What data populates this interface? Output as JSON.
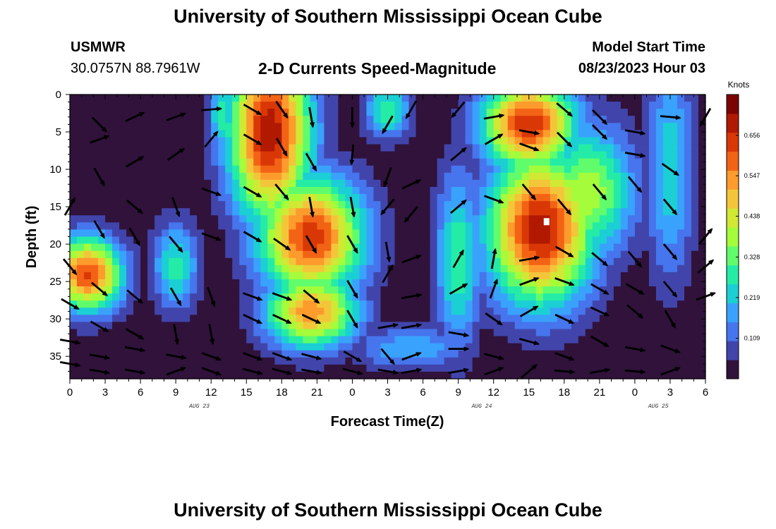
{
  "header": {
    "title": "University of Southern Mississippi Ocean Cube",
    "station_name": "USMWR",
    "station_coords": "30.0757N  88.7961W",
    "subtitle": "2-D Currents Speed-Magnitude",
    "model_start_label": "Model Start Time",
    "model_start_value": "08/23/2023 Hour 03"
  },
  "footer": {
    "title": "University of Southern Mississippi Ocean Cube"
  },
  "chart_data": {
    "type": "heatmap",
    "xlabel": "Forecast Time(Z)",
    "ylabel": "Depth (ft)",
    "x_hours": [
      0,
      54
    ],
    "ylim": [
      0,
      38
    ],
    "x_tick_labels": [
      "0",
      "3",
      "6",
      "9",
      "12",
      "15",
      "18",
      "21",
      "0",
      "3",
      "6",
      "9",
      "12",
      "15",
      "18",
      "21",
      "0",
      "3",
      "6"
    ],
    "y_tick_labels": [
      "0",
      "5",
      "10",
      "15",
      "20",
      "25",
      "30",
      "35"
    ],
    "date_labels": [
      {
        "text": "AUG 23",
        "hour": 11
      },
      {
        "text": "AUG 24",
        "hour": 35
      },
      {
        "text": "AUG 25",
        "hour": 50
      }
    ],
    "colorbar": {
      "unit": "Knots",
      "ticks": [
        0.109,
        0.219,
        0.328,
        0.438,
        0.547,
        0.656
      ],
      "range": [
        0,
        0.766
      ],
      "colors": [
        "#30123b",
        "#4145ab",
        "#4675ed",
        "#39a2fc",
        "#1bcfd4",
        "#24eca6",
        "#61fc6c",
        "#a4fc3b",
        "#d1e834",
        "#f3c63a",
        "#fe9b2d",
        "#f36315",
        "#d93806",
        "#b11901",
        "#7a0402"
      ]
    },
    "speed_peaks": [
      {
        "t": 17,
        "d": 5,
        "s": 0.7,
        "wt": 3.5,
        "wd": 12
      },
      {
        "t": 20.5,
        "d": 19,
        "s": 0.64,
        "wt": 4.5,
        "wd": 8
      },
      {
        "t": 1.5,
        "d": 24,
        "s": 0.62,
        "wt": 3,
        "wd": 5
      },
      {
        "t": 20.5,
        "d": 29,
        "s": 0.55,
        "wt": 4,
        "wd": 5
      },
      {
        "t": 22,
        "d": 19,
        "s": 0.5,
        "wt": 3,
        "wd": 5
      },
      {
        "t": 40,
        "d": 18,
        "s": 0.7,
        "wt": 4.5,
        "wd": 10
      },
      {
        "t": 39,
        "d": 4,
        "s": 0.66,
        "wt": 4,
        "wd": 6
      },
      {
        "t": 44,
        "d": 13,
        "s": 0.4,
        "wt": 4,
        "wd": 9
      },
      {
        "t": 9,
        "d": 23,
        "s": 0.28,
        "wt": 2,
        "wd": 6
      },
      {
        "t": 13,
        "d": 3,
        "s": 0.3,
        "wt": 1.2,
        "wd": 5
      },
      {
        "t": 27,
        "d": 2,
        "s": 0.3,
        "wt": 2,
        "wd": 4
      },
      {
        "t": 33,
        "d": 22,
        "s": 0.3,
        "wt": 2,
        "wd": 12
      },
      {
        "t": 51,
        "d": 10,
        "s": 0.25,
        "wt": 2,
        "wd": 15
      },
      {
        "t": 29,
        "d": 34,
        "s": 0.2,
        "wt": 5,
        "wd": 3
      }
    ],
    "vectors": [
      [
        [
          2.5,
          4,
          45
        ],
        [
          5.5,
          3,
          -25
        ],
        [
          9,
          3,
          -20
        ],
        [
          12,
          2,
          -5
        ],
        [
          15.5,
          2,
          30
        ],
        [
          18,
          2,
          55
        ],
        [
          20.5,
          3,
          80
        ],
        [
          24,
          3,
          90
        ],
        [
          27,
          4,
          120
        ],
        [
          29,
          2,
          120
        ],
        [
          33,
          2,
          130
        ],
        [
          36,
          3,
          -10
        ],
        [
          39,
          5,
          10
        ],
        [
          42,
          2,
          40
        ],
        [
          45,
          3,
          45
        ],
        [
          48,
          5,
          10
        ],
        [
          51,
          3,
          5
        ],
        [
          54,
          3,
          120
        ]
      ],
      [
        [
          2.5,
          6,
          -20
        ],
        [
          5.5,
          9,
          -30
        ],
        [
          9,
          8,
          -35
        ],
        [
          12,
          6,
          -50
        ],
        [
          15.5,
          6,
          30
        ],
        [
          18,
          7,
          60
        ],
        [
          20.5,
          9,
          60
        ],
        [
          24,
          8,
          95
        ],
        [
          27,
          11,
          110
        ],
        [
          29,
          12,
          -25
        ],
        [
          33,
          8,
          -40
        ],
        [
          36,
          6,
          -30
        ],
        [
          39,
          7,
          20
        ],
        [
          42,
          6,
          45
        ],
        [
          45,
          5,
          45
        ],
        [
          48,
          8,
          10
        ],
        [
          51,
          10,
          35
        ]
      ],
      [
        [
          2.5,
          11,
          60
        ],
        [
          5.5,
          15,
          40
        ],
        [
          9,
          15,
          70
        ],
        [
          12,
          13,
          20
        ],
        [
          15.5,
          13,
          30
        ],
        [
          18,
          13,
          50
        ],
        [
          20.5,
          15,
          80
        ],
        [
          24,
          15,
          80
        ],
        [
          27,
          15,
          130
        ],
        [
          29,
          16,
          130
        ],
        [
          33,
          15,
          -40
        ],
        [
          36,
          14,
          20
        ],
        [
          39,
          13,
          50
        ],
        [
          42,
          15,
          50
        ],
        [
          45,
          13,
          50
        ],
        [
          48,
          12,
          50
        ],
        [
          51,
          15,
          50
        ]
      ],
      [
        [
          0,
          15,
          -60
        ],
        [
          2.5,
          18,
          60
        ],
        [
          5.5,
          19,
          60
        ],
        [
          9,
          20,
          50
        ],
        [
          12,
          19,
          20
        ],
        [
          15.5,
          19,
          30
        ],
        [
          18,
          20,
          35
        ],
        [
          20.5,
          20,
          60
        ],
        [
          24,
          20,
          60
        ],
        [
          27,
          21,
          80
        ],
        [
          29,
          22,
          -20
        ],
        [
          33,
          22,
          -60
        ],
        [
          36,
          22,
          -80
        ],
        [
          39,
          22,
          -10
        ],
        [
          42,
          21,
          30
        ],
        [
          45,
          22,
          40
        ],
        [
          48,
          22,
          50
        ],
        [
          51,
          21,
          50
        ],
        [
          54,
          19,
          -50
        ]
      ],
      [
        [
          0,
          23,
          50
        ],
        [
          2.5,
          26,
          40
        ],
        [
          5.5,
          27,
          40
        ],
        [
          9,
          27,
          60
        ],
        [
          12,
          27,
          70
        ],
        [
          15.5,
          27,
          20
        ],
        [
          18,
          27,
          20
        ],
        [
          20.5,
          27,
          40
        ],
        [
          24,
          26,
          60
        ],
        [
          27,
          24,
          -60
        ],
        [
          29,
          27,
          -10
        ],
        [
          33,
          26,
          -30
        ],
        [
          36,
          26,
          -70
        ],
        [
          39,
          25,
          -20
        ],
        [
          42,
          25,
          20
        ],
        [
          45,
          26,
          30
        ],
        [
          48,
          26,
          30
        ],
        [
          51,
          26,
          50
        ],
        [
          54,
          23,
          -40
        ]
      ],
      [
        [
          0,
          28,
          30
        ],
        [
          2.5,
          31,
          30
        ],
        [
          5.5,
          32,
          30
        ],
        [
          9,
          32,
          80
        ],
        [
          12,
          32,
          80
        ],
        [
          15.5,
          30,
          25
        ],
        [
          18,
          30,
          25
        ],
        [
          20.5,
          30,
          25
        ],
        [
          24,
          30,
          60
        ],
        [
          27,
          31,
          -10
        ],
        [
          29,
          31,
          -10
        ],
        [
          33,
          32,
          10
        ],
        [
          36,
          30,
          35
        ],
        [
          39,
          29,
          -30
        ],
        [
          42,
          30,
          25
        ],
        [
          45,
          29,
          25
        ],
        [
          48,
          29,
          40
        ],
        [
          51,
          30,
          60
        ],
        [
          54,
          27,
          -20
        ]
      ],
      [
        [
          0,
          33,
          10
        ],
        [
          2.5,
          35,
          10
        ],
        [
          5.5,
          34,
          10
        ],
        [
          9,
          35,
          10
        ],
        [
          12,
          35,
          20
        ],
        [
          15.5,
          35,
          20
        ],
        [
          18,
          35,
          20
        ],
        [
          20.5,
          35,
          15
        ],
        [
          24,
          35,
          30
        ],
        [
          27,
          35,
          50
        ],
        [
          29,
          35,
          -20
        ],
        [
          33,
          34,
          0
        ],
        [
          36,
          35,
          15
        ],
        [
          39,
          33,
          15
        ],
        [
          42,
          35,
          20
        ],
        [
          45,
          33,
          30
        ],
        [
          48,
          34,
          10
        ],
        [
          51,
          34,
          20
        ]
      ],
      [
        [
          0,
          36,
          10
        ],
        [
          2.5,
          37,
          10
        ],
        [
          5.5,
          37,
          10
        ],
        [
          9,
          37,
          -20
        ],
        [
          12,
          37,
          20
        ],
        [
          15.5,
          37,
          15
        ],
        [
          18,
          37,
          15
        ],
        [
          20.5,
          37,
          10
        ],
        [
          24,
          37,
          15
        ],
        [
          27,
          37,
          10
        ],
        [
          29,
          37,
          -10
        ],
        [
          33,
          37,
          -10
        ],
        [
          36,
          37,
          -20
        ],
        [
          39,
          37,
          -40
        ],
        [
          42,
          37,
          5
        ],
        [
          45,
          37,
          -10
        ],
        [
          48,
          37,
          5
        ],
        [
          51,
          37,
          -20
        ]
      ]
    ],
    "marker": {
      "t": 40.5,
      "d": 17
    }
  }
}
